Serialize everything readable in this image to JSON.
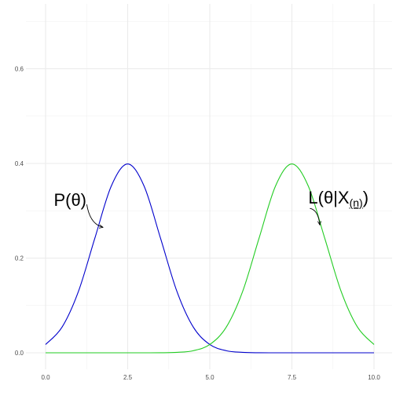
{
  "chart_data": {
    "type": "line",
    "title": "",
    "xlabel": "",
    "ylabel": "",
    "xlim": [
      0,
      10
    ],
    "ylim": [
      0,
      0.7
    ],
    "x_ticks": [
      0,
      2.5,
      5,
      7.5,
      10
    ],
    "x_tick_labels": [
      "0.0",
      "2.5",
      "5.0",
      "7.5",
      "10.0"
    ],
    "y_ticks": [
      0,
      0.2,
      0.4,
      0.6
    ],
    "y_tick_labels": [
      "0.0",
      "0.2",
      "0.4",
      "0.6"
    ],
    "grid": true,
    "legend": "none",
    "series": [
      {
        "color": "#0000cc",
        "x": [
          0,
          0.5,
          1,
          1.5,
          2,
          2.5,
          3,
          3.5,
          4,
          4.5,
          5,
          5.5,
          6,
          6.5,
          7,
          7.5,
          8,
          8.5,
          9,
          9.5,
          10
        ],
        "y": [
          0.0175,
          0.054,
          0.1295,
          0.242,
          0.3521,
          0.3989,
          0.3521,
          0.242,
          0.1295,
          0.054,
          0.0175,
          0.0044,
          0.0009,
          0.0001,
          0,
          0,
          0,
          0,
          0,
          0,
          0
        ]
      },
      {
        "color": "#22cc22",
        "x": [
          0,
          0.5,
          1,
          1.5,
          2,
          2.5,
          3,
          3.5,
          4,
          4.5,
          5,
          5.5,
          6,
          6.5,
          7,
          7.5,
          8,
          8.5,
          9,
          9.5,
          10
        ],
        "y": [
          0,
          0,
          0,
          0,
          0,
          0,
          0,
          0.0001,
          0.0009,
          0.0044,
          0.0175,
          0.054,
          0.1295,
          0.242,
          0.3521,
          0.3989,
          0.3521,
          0.242,
          0.1295,
          0.054,
          0.0175
        ]
      }
    ],
    "annotations": [
      {
        "main": "P(θ)",
        "sub": "",
        "close": "",
        "x": 0.25,
        "y": 0.31,
        "arrow_to": [
          1.75,
          0.265
        ]
      },
      {
        "main": "L(θ|X",
        "sub": "(n)",
        "close": ")",
        "x": 8.0,
        "y": 0.315,
        "arrow_to": [
          8.35,
          0.27
        ]
      }
    ]
  }
}
